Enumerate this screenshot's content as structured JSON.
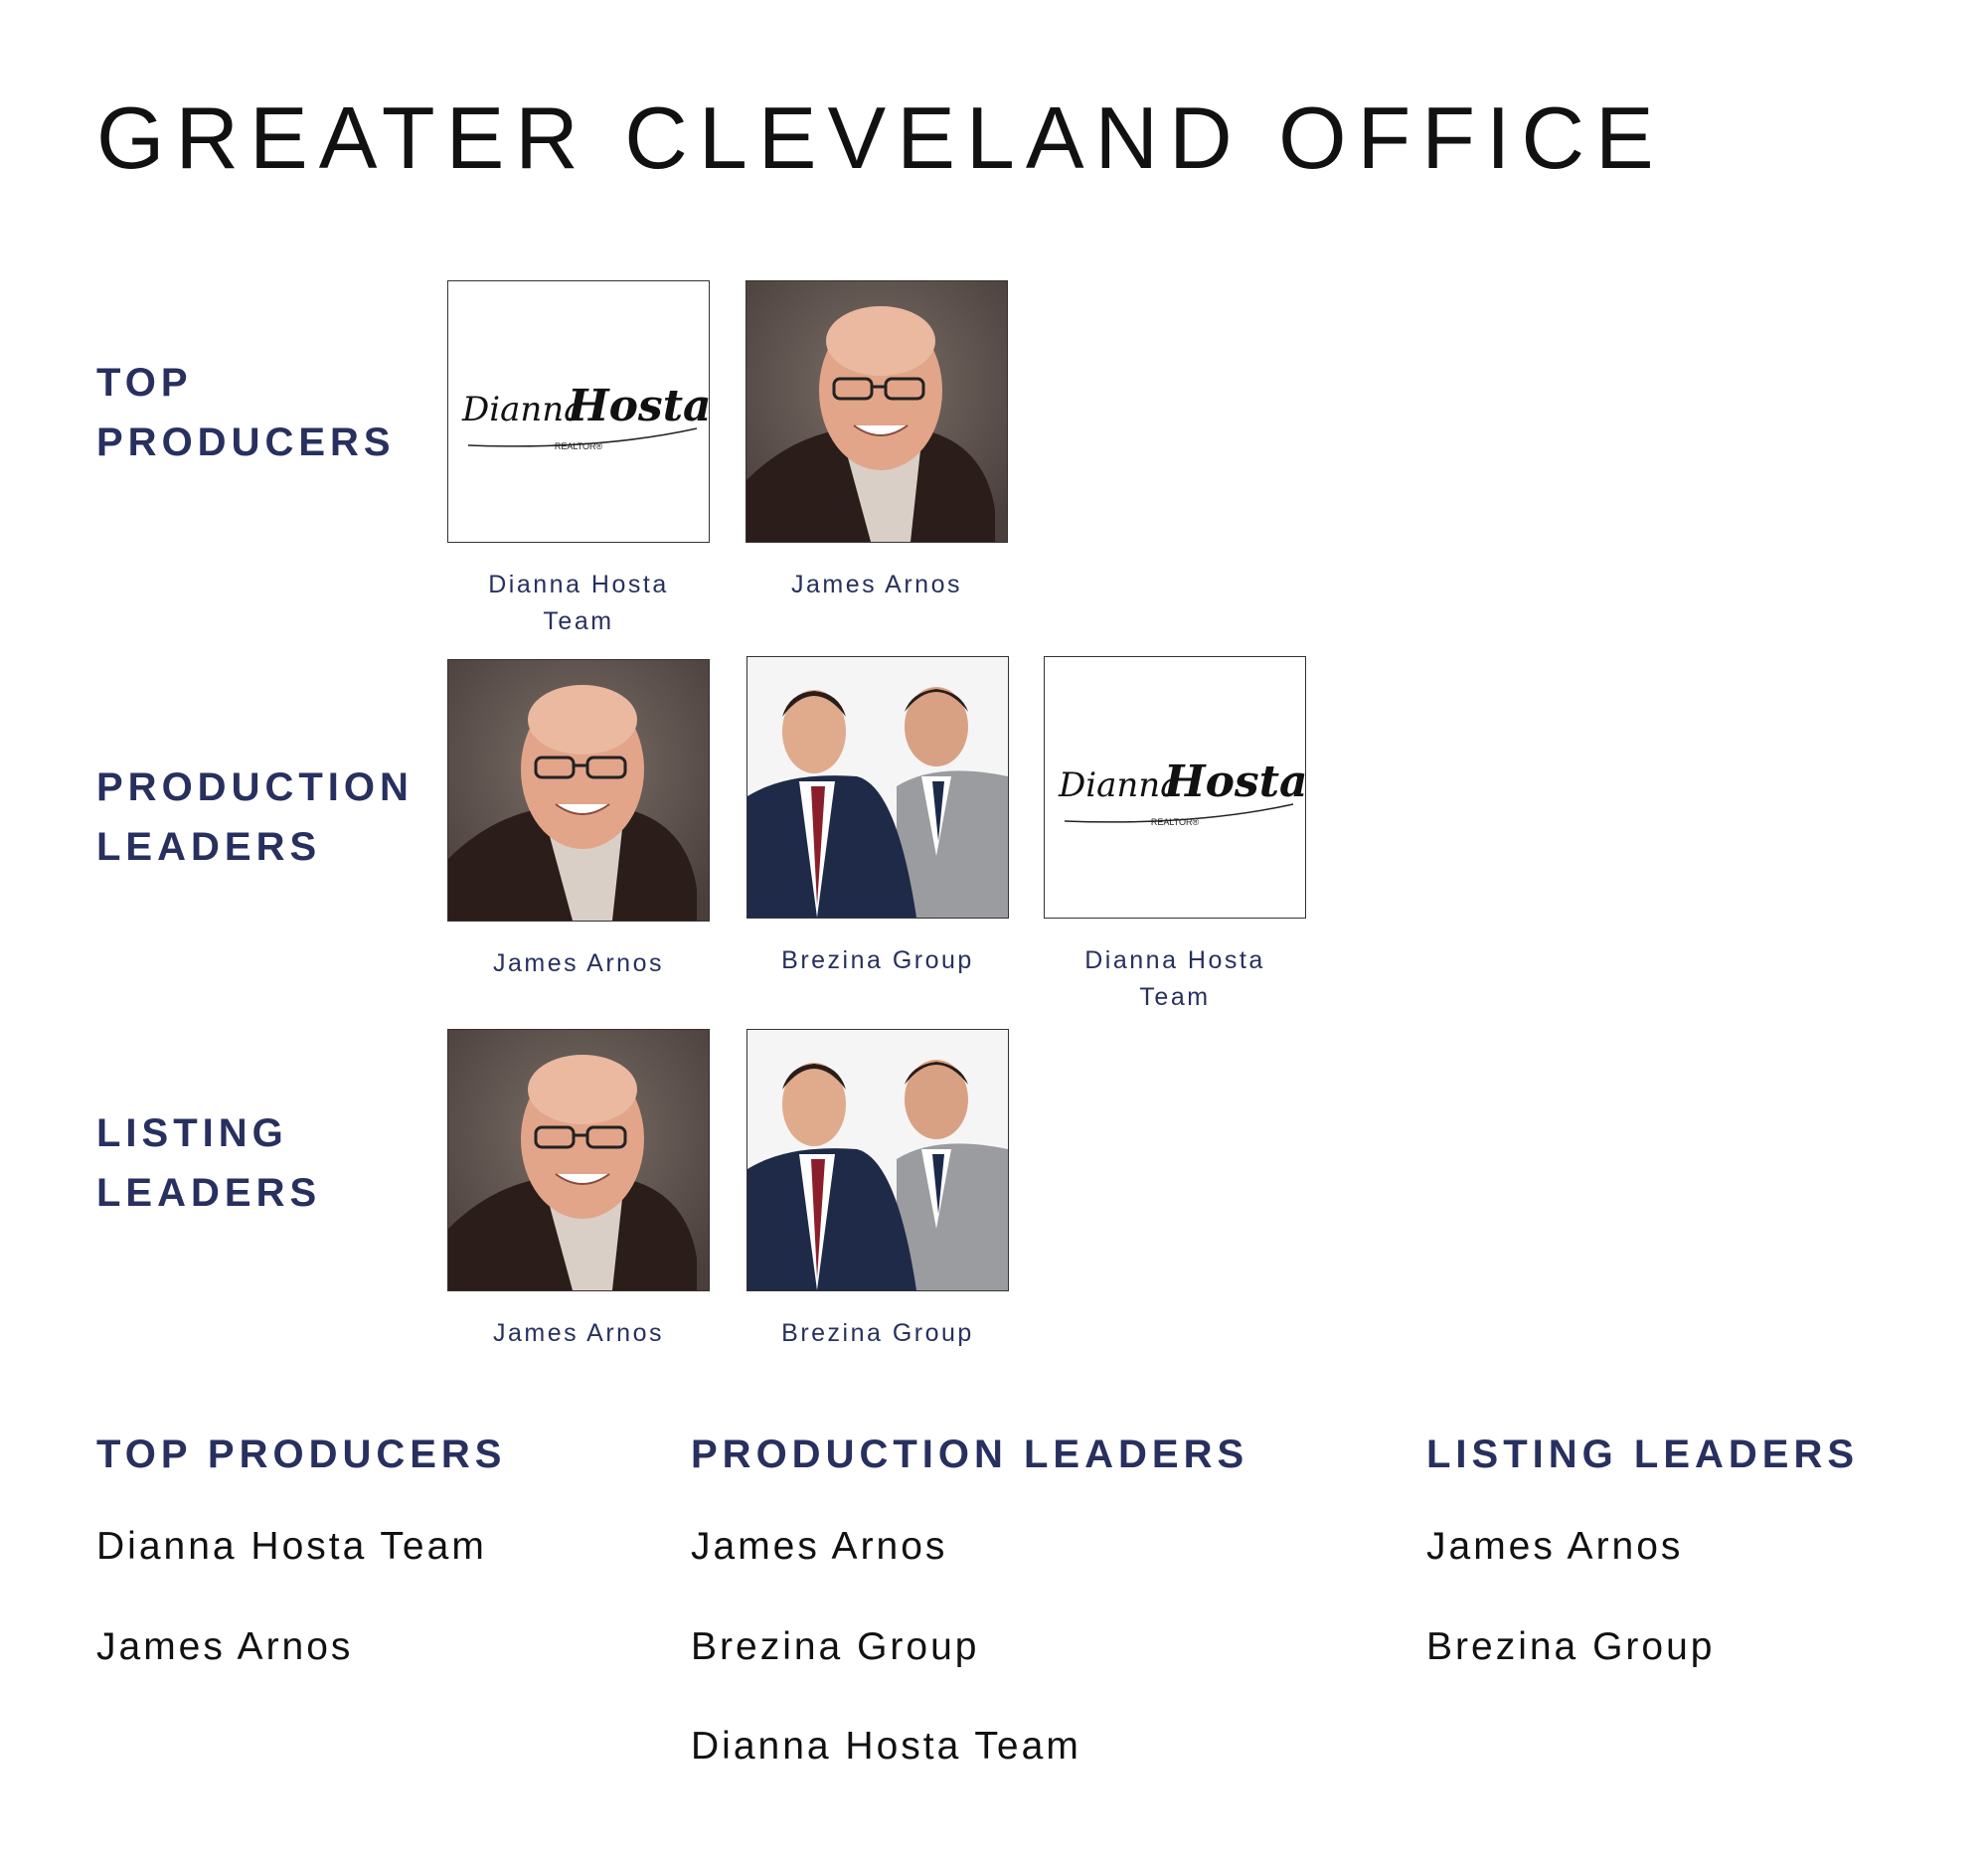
{
  "title": "GREATER CLEVELAND OFFICE",
  "logo": {
    "script_text": "Dianna Hosta",
    "sub_text": "REALTOR®"
  },
  "colors": {
    "accent": "#27305f",
    "text": "#111111"
  },
  "categories": [
    {
      "label_line1": "TOP",
      "label_line2": "PRODUCERS",
      "members": [
        {
          "name_line1": "Dianna Hosta",
          "name_line2": "Team",
          "image": "logo"
        },
        {
          "name_line1": "James Arnos",
          "name_line2": "",
          "image": "portrait-man"
        }
      ]
    },
    {
      "label_line1": "PRODUCTION",
      "label_line2": "LEADERS",
      "members": [
        {
          "name_line1": "James Arnos",
          "name_line2": "",
          "image": "portrait-man"
        },
        {
          "name_line1": "Brezina Group",
          "name_line2": "",
          "image": "portrait-two-men"
        },
        {
          "name_line1": "Dianna Hosta",
          "name_line2": "Team",
          "image": "logo"
        }
      ]
    },
    {
      "label_line1": "LISTING",
      "label_line2": "LEADERS",
      "members": [
        {
          "name_line1": "James Arnos",
          "name_line2": "",
          "image": "portrait-man"
        },
        {
          "name_line1": "Brezina Group",
          "name_line2": "",
          "image": "portrait-two-men"
        }
      ]
    }
  ],
  "lists": [
    {
      "heading": "TOP PRODUCERS",
      "items": [
        "Dianna Hosta Team",
        "James Arnos"
      ]
    },
    {
      "heading": "PRODUCTION LEADERS",
      "items": [
        "James Arnos",
        "Brezina Group",
        "Dianna Hosta Team"
      ]
    },
    {
      "heading": "LISTING LEADERS",
      "items": [
        "James Arnos",
        "Brezina Group"
      ]
    }
  ]
}
